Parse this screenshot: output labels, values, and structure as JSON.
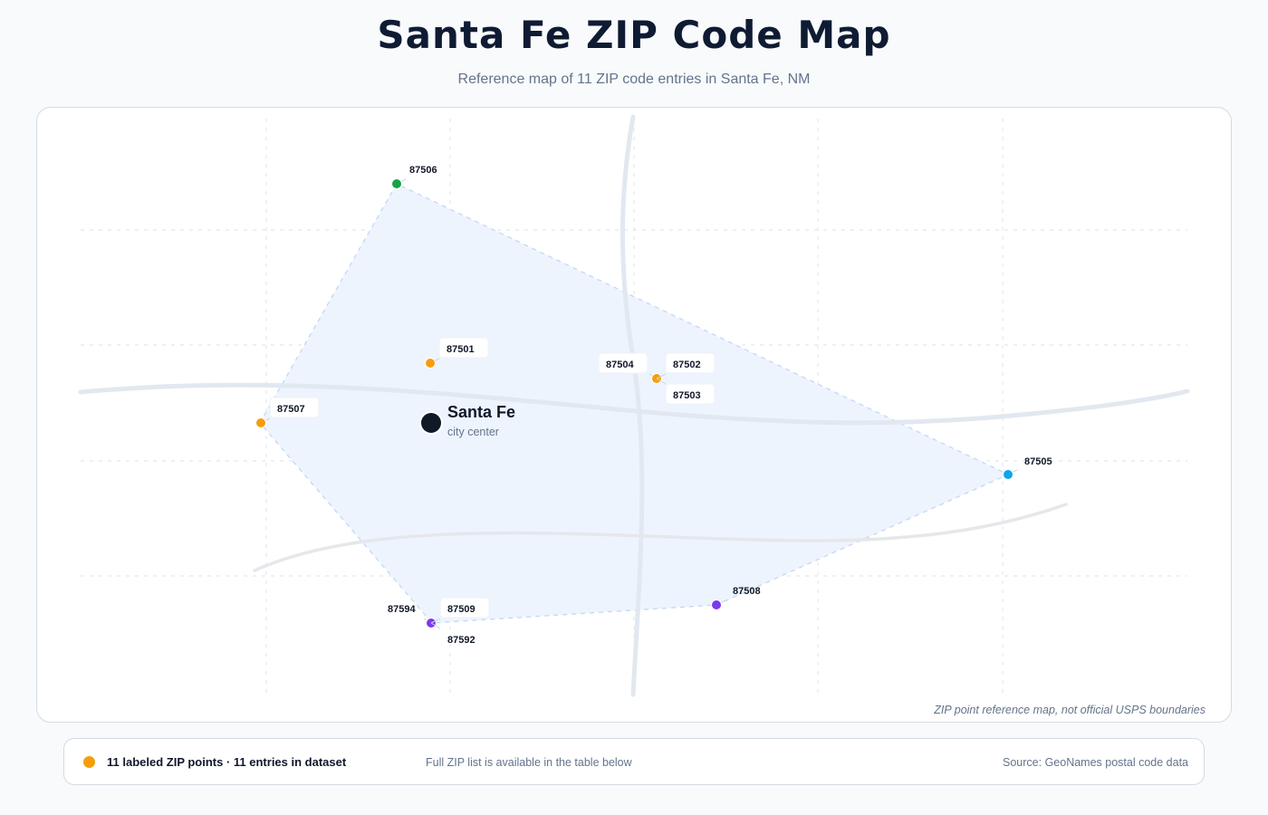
{
  "title": "Santa Fe ZIP Code Map",
  "subtitle": "Reference map of 11 ZIP code entries in Santa Fe, NM",
  "map": {
    "city": {
      "name": "Santa Fe",
      "caption": "city center",
      "color": "#111827"
    },
    "zip_points": [
      {
        "zip": "87506",
        "color": "#16a34a"
      },
      {
        "zip": "87501",
        "color": "#f59e0b"
      },
      {
        "zip": "87504",
        "color": "#f59e0b"
      },
      {
        "zip": "87502",
        "color": "#f59e0b"
      },
      {
        "zip": "87503",
        "color": "#f59e0b"
      },
      {
        "zip": "87507",
        "color": "#f59e0b"
      },
      {
        "zip": "87505",
        "color": "#0ea5e9"
      },
      {
        "zip": "87508",
        "color": "#7c3aed"
      },
      {
        "zip": "87594",
        "color": "#7c3aed"
      },
      {
        "zip": "87509",
        "color": "#7c3aed"
      },
      {
        "zip": "87592",
        "color": "#7c3aed"
      }
    ],
    "coverage_fill": "#eef4fe",
    "coverage_stroke": "#c7d9f3",
    "footnote": "ZIP point reference map, not official USPS boundaries"
  },
  "footer": {
    "legend_color": "#f59e0b",
    "count_text": "11 labeled ZIP points · 11 entries in dataset",
    "note": "Full ZIP list is available in the table below",
    "source": "Source: GeoNames postal code data"
  }
}
